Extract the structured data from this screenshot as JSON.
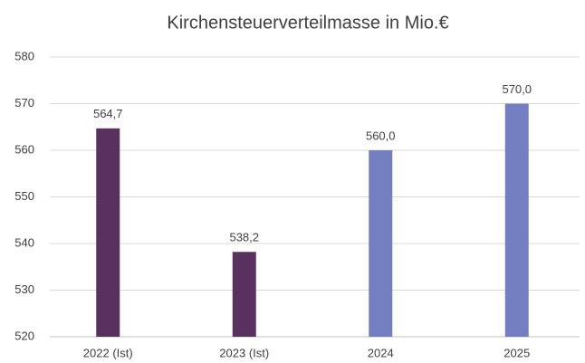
{
  "chart_data": {
    "type": "bar",
    "title": "Kirchensteuerverteilmasse in Mio.€",
    "categories": [
      "2022 (Ist)",
      "2023 (Ist)",
      "2024",
      "2025"
    ],
    "values": [
      564.7,
      538.2,
      560.0,
      570.0
    ],
    "value_labels": [
      "564,7",
      "538,2",
      "560,0",
      "570,0"
    ],
    "colors": [
      "#59315e",
      "#59315e",
      "#737fc1",
      "#737fc1"
    ],
    "ylim": [
      520,
      580
    ],
    "yticks": [
      520,
      530,
      540,
      550,
      560,
      570,
      580
    ],
    "grid": true
  }
}
